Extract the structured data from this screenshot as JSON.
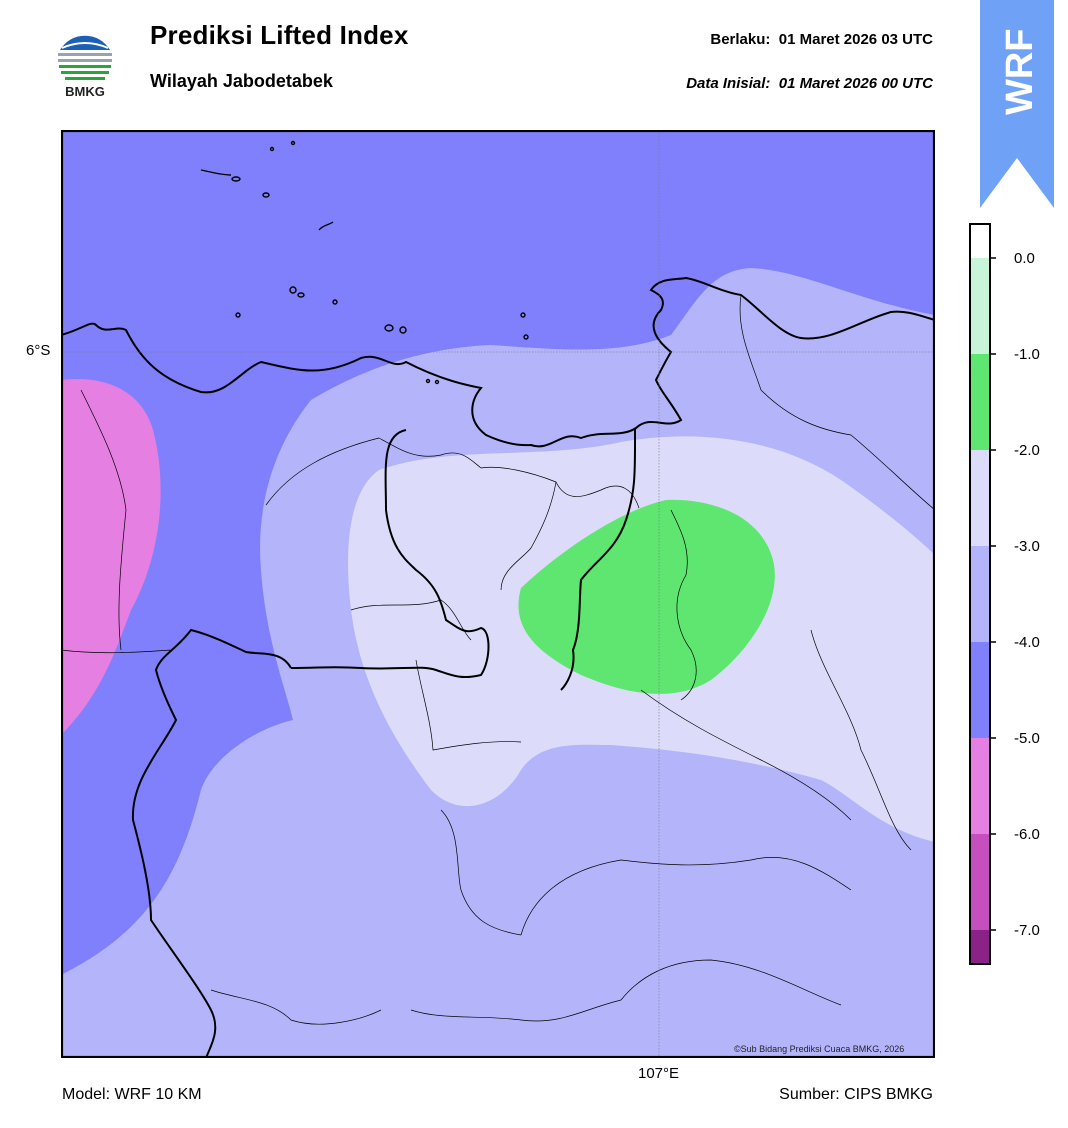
{
  "header": {
    "logo_text": "BMKG",
    "title": "Prediksi Lifted Index",
    "subtitle": "Wilayah Jabodetabek",
    "valid_label": "Berlaku:",
    "valid_value": "01 Maret 2026 03 UTC",
    "init_label": "Data Inisial:",
    "init_value": "01 Maret 2026 00 UTC"
  },
  "badge": {
    "text": "WRF",
    "color": "#6fa2f7"
  },
  "map": {
    "lat_label": "6°S",
    "lon_label": "107°E",
    "credit": "©Sub Bidang Prediksi Cuaca BMKG, 2026"
  },
  "colorbar": {
    "ticks": [
      "0.0",
      "-1.0",
      "-2.0",
      "-3.0",
      "-4.0",
      "-5.0",
      "-6.0",
      "-7.0"
    ],
    "bins": [
      {
        "range": "> 0",
        "color": "#ffffff"
      },
      {
        "range": "0 to -1",
        "color": "#c8f5d7"
      },
      {
        "range": "-1 to -2",
        "color": "#5ee670"
      },
      {
        "range": "-2 to -3",
        "color": "#dcdcfa"
      },
      {
        "range": "-3 to -4",
        "color": "#b4b4fb"
      },
      {
        "range": "-4 to -5",
        "color": "#8080fc"
      },
      {
        "range": "-5 to -6",
        "color": "#e57fe2"
      },
      {
        "range": "-6 to -7",
        "color": "#c64fc0"
      },
      {
        "range": "< -7",
        "color": "#8b2287"
      }
    ]
  },
  "footer": {
    "model": "Model: WRF 10 KM",
    "source": "Sumber: CIPS BMKG"
  }
}
